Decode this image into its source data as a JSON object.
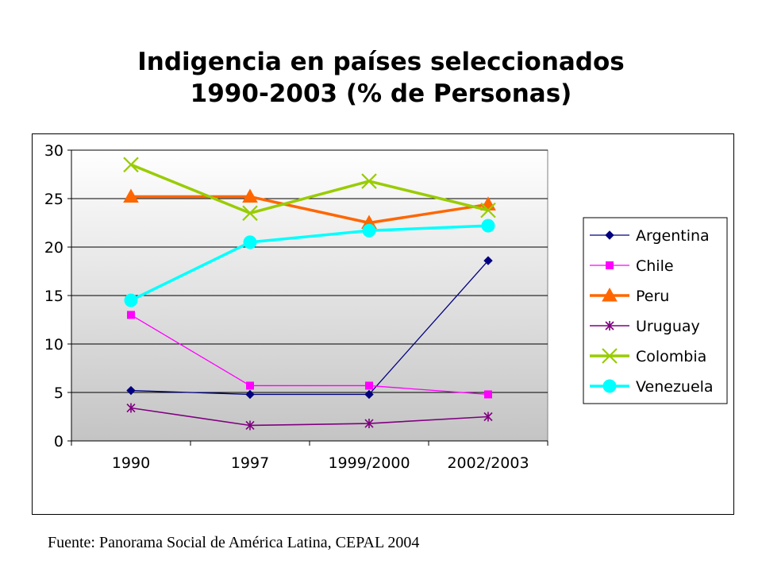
{
  "chart_data": {
    "type": "line",
    "title_lines": [
      "Indigencia en países seleccionados",
      "1990-2003 (% de Personas)"
    ],
    "categories": [
      "1990",
      "1997",
      "1999/2000",
      "2002/2003"
    ],
    "ylim": [
      0,
      30
    ],
    "yticks": [
      0,
      5,
      10,
      15,
      20,
      25,
      30
    ],
    "grid": true,
    "legend_position": "right",
    "series": [
      {
        "name": "Argentina",
        "values": [
          5.2,
          4.8,
          4.8,
          18.6
        ],
        "color": "#000080",
        "marker": "diamond"
      },
      {
        "name": "Chile",
        "values": [
          13.0,
          5.7,
          5.7,
          4.8
        ],
        "color": "#ff00ff",
        "marker": "square"
      },
      {
        "name": "Peru",
        "values": [
          25.2,
          25.2,
          22.5,
          24.4
        ],
        "color": "#ff6600",
        "marker": "triangle"
      },
      {
        "name": "Uruguay",
        "values": [
          3.4,
          1.6,
          1.8,
          2.5
        ],
        "color": "#800080",
        "marker": "star"
      },
      {
        "name": "Colombia",
        "values": [
          28.5,
          23.5,
          26.8,
          23.8
        ],
        "color": "#99cc00",
        "marker": "x"
      },
      {
        "name": "Venezuela",
        "values": [
          14.5,
          20.5,
          21.7,
          22.2
        ],
        "color": "#00ffff",
        "marker": "circle"
      }
    ]
  },
  "source": "Fuente: Panorama Social de América Latina, CEPAL 2004"
}
